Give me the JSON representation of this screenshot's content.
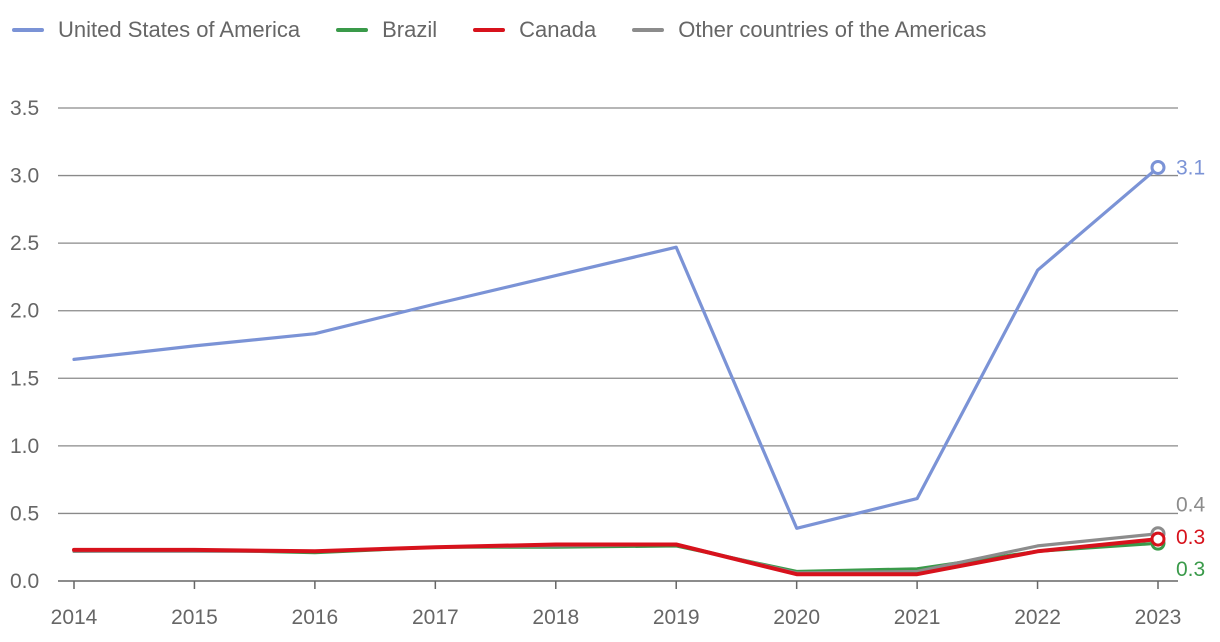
{
  "chart_data": {
    "type": "line",
    "title": "",
    "xlabel": "",
    "ylabel": "",
    "x": [
      "2014",
      "2015",
      "2016",
      "2017",
      "2018",
      "2019",
      "2020",
      "2021",
      "2022",
      "2023"
    ],
    "ylim": [
      0,
      3.5
    ],
    "yticks": [
      "0.0",
      "0.5",
      "1.0",
      "1.5",
      "2.0",
      "2.5",
      "3.0",
      "3.5"
    ],
    "grid": true,
    "legend_position": "top-left",
    "series": [
      {
        "name": "United States of America",
        "color": "#7b93d6",
        "values": [
          1.64,
          1.74,
          1.83,
          2.05,
          2.26,
          2.47,
          0.39,
          0.61,
          2.3,
          3.06
        ],
        "end_label": "3.1"
      },
      {
        "name": "Brazil",
        "color": "#3a9a4a",
        "values": [
          0.22,
          0.23,
          0.21,
          0.25,
          0.25,
          0.26,
          0.07,
          0.09,
          0.22,
          0.28
        ],
        "end_label": "0.3"
      },
      {
        "name": "Canada",
        "color": "#d7121c",
        "values": [
          0.23,
          0.23,
          0.22,
          0.25,
          0.27,
          0.27,
          0.05,
          0.05,
          0.22,
          0.31
        ],
        "end_label": "0.3"
      },
      {
        "name": "Other countries of the Americas",
        "color": "#8c8c8c",
        "values": [
          0.22,
          0.22,
          0.22,
          0.25,
          0.26,
          0.27,
          0.06,
          0.07,
          0.26,
          0.35
        ],
        "end_label": "0.4"
      }
    ]
  }
}
